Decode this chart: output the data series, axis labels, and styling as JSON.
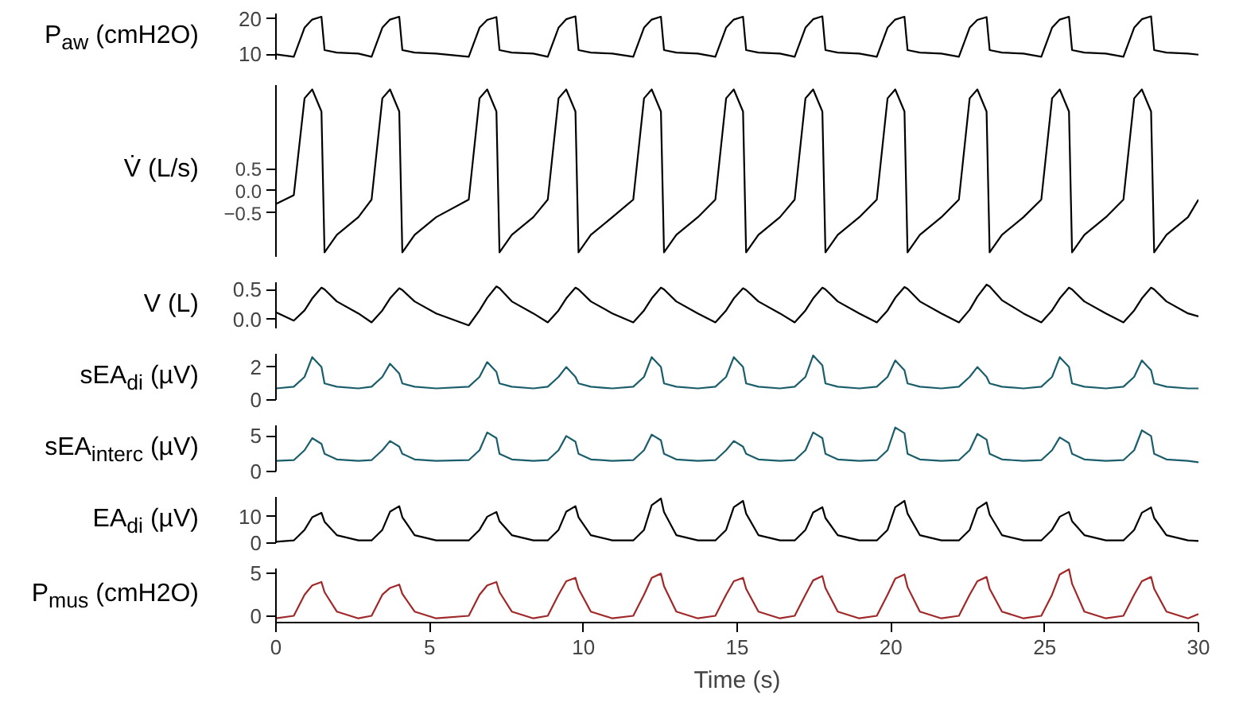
{
  "chart_data": [
    {
      "type": "line",
      "ylabel": "P$_{aw}$ (cmH2O)",
      "xlim": [
        0,
        30
      ],
      "ylim": [
        8.5,
        21.5
      ],
      "yticks": [
        10,
        20
      ],
      "tick_labels": "y",
      "x": [
        0,
        0.58,
        0.93,
        1.18,
        1.48,
        1.58,
        1.98,
        2.68,
        3.11,
        3.46,
        3.71,
        4.01,
        4.11,
        4.51,
        5.21,
        6.27,
        6.62,
        6.87,
        7.17,
        7.27,
        7.67,
        8.37,
        8.84,
        9.19,
        9.44,
        9.74,
        9.84,
        10.24,
        10.94,
        11.62,
        11.97,
        12.22,
        12.52,
        12.62,
        13.02,
        13.72,
        14.29,
        14.64,
        14.89,
        15.19,
        15.29,
        15.69,
        16.39,
        16.87,
        17.22,
        17.47,
        17.77,
        17.87,
        18.27,
        18.97,
        19.54,
        19.89,
        20.14,
        20.44,
        20.54,
        20.94,
        21.64,
        22.21,
        22.56,
        22.81,
        23.11,
        23.21,
        23.61,
        24.31,
        24.89,
        25.24,
        25.49,
        25.79,
        25.89,
        26.29,
        26.99,
        27.56,
        27.91,
        28.16,
        28.46,
        28.56,
        28.96,
        29.66,
        30
      ],
      "series": [
        {
          "color": "#000000",
          "values": [
            10.0,
            9.3,
            17.5,
            19.8,
            20.6,
            11.2,
            10.5,
            10.2,
            9.3,
            17.5,
            19.8,
            20.6,
            11.2,
            10.5,
            10.2,
            9.3,
            17.5,
            19.7,
            20.5,
            11.2,
            10.5,
            10.2,
            9.3,
            17.5,
            19.9,
            20.7,
            11.2,
            10.5,
            10.2,
            9.3,
            17.5,
            19.8,
            20.6,
            11.2,
            10.5,
            10.2,
            9.3,
            17.5,
            19.8,
            20.6,
            11.2,
            10.5,
            10.2,
            9.3,
            17.5,
            19.9,
            20.7,
            11.2,
            10.5,
            10.2,
            9.3,
            17.5,
            19.8,
            20.6,
            11.2,
            10.5,
            10.2,
            9.3,
            17.5,
            19.7,
            20.5,
            11.2,
            10.5,
            10.2,
            9.3,
            17.5,
            19.8,
            20.6,
            11.2,
            10.5,
            10.2,
            9.3,
            17.5,
            19.9,
            20.7,
            11.2,
            10.5,
            10.2,
            9.9
          ]
        }
      ]
    },
    {
      "type": "line",
      "ylabel": "V̇ (L/s)",
      "xlim": [
        0,
        30
      ],
      "ylim": [
        -1.5,
        2.4
      ],
      "yticks": [
        {
          "value": -0.5,
          "label": "−0.5"
        },
        {
          "value": 0,
          "label": "0.0"
        },
        {
          "value": 0.5,
          "label": "0.5"
        }
      ],
      "tick_labels": "y",
      "x": [
        0,
        0.58,
        0.93,
        1.18,
        1.48,
        1.58,
        1.98,
        2.68,
        3.11,
        3.46,
        3.71,
        4.01,
        4.11,
        4.51,
        5.21,
        6.27,
        6.62,
        6.87,
        7.17,
        7.27,
        7.67,
        8.37,
        8.84,
        9.19,
        9.44,
        9.74,
        9.84,
        10.24,
        10.94,
        11.62,
        11.97,
        12.22,
        12.52,
        12.62,
        13.02,
        13.72,
        14.29,
        14.64,
        14.89,
        15.19,
        15.29,
        15.69,
        16.39,
        16.87,
        17.22,
        17.47,
        17.77,
        17.87,
        18.27,
        18.97,
        19.54,
        19.89,
        20.14,
        20.44,
        20.54,
        20.94,
        21.64,
        22.21,
        22.56,
        22.81,
        23.11,
        23.21,
        23.61,
        24.31,
        24.89,
        25.24,
        25.49,
        25.79,
        25.89,
        26.29,
        26.99,
        27.56,
        27.91,
        28.16,
        28.46,
        28.56,
        28.96,
        29.66,
        30
      ],
      "series": [
        {
          "color": "#000000",
          "values": [
            -0.3,
            -0.1,
            2.1,
            2.3,
            1.8,
            -1.4,
            -1.0,
            -0.6,
            -0.2,
            2.1,
            2.3,
            1.8,
            -1.4,
            -1.0,
            -0.6,
            -0.2,
            2.1,
            2.3,
            1.8,
            -1.4,
            -1.0,
            -0.6,
            -0.2,
            2.1,
            2.3,
            1.8,
            -1.4,
            -1.0,
            -0.6,
            -0.2,
            2.1,
            2.3,
            1.8,
            -1.4,
            -1.0,
            -0.6,
            -0.2,
            2.1,
            2.3,
            1.8,
            -1.4,
            -1.0,
            -0.6,
            -0.2,
            2.1,
            2.3,
            1.8,
            -1.4,
            -1.0,
            -0.6,
            -0.2,
            2.1,
            2.3,
            1.8,
            -1.4,
            -1.0,
            -0.6,
            -0.2,
            2.1,
            2.3,
            1.8,
            -1.4,
            -1.0,
            -0.6,
            -0.2,
            2.1,
            2.3,
            1.8,
            -1.4,
            -1.0,
            -0.6,
            -0.2,
            2.1,
            2.3,
            1.8,
            -1.4,
            -1.0,
            -0.6,
            -0.2
          ]
        }
      ]
    },
    {
      "type": "line",
      "ylabel": "V (L)",
      "xlim": [
        0,
        30
      ],
      "ylim": [
        -0.15,
        0.62
      ],
      "yticks": [
        {
          "value": 0,
          "label": "0.0"
        },
        {
          "value": 0.5,
          "label": "0.5"
        }
      ],
      "tick_labels": "y",
      "x": [
        0,
        0.58,
        0.93,
        1.18,
        1.48,
        1.58,
        1.98,
        2.68,
        3.11,
        3.46,
        3.71,
        4.01,
        4.11,
        4.51,
        5.21,
        6.27,
        6.62,
        6.87,
        7.17,
        7.27,
        7.67,
        8.37,
        8.84,
        9.19,
        9.44,
        9.74,
        9.84,
        10.24,
        10.94,
        11.62,
        11.97,
        12.22,
        12.52,
        12.62,
        13.02,
        13.72,
        14.29,
        14.64,
        14.89,
        15.19,
        15.29,
        15.69,
        16.39,
        16.87,
        17.22,
        17.47,
        17.77,
        17.87,
        18.27,
        18.97,
        19.54,
        19.89,
        20.14,
        20.44,
        20.54,
        20.94,
        21.64,
        22.21,
        22.56,
        22.81,
        23.11,
        23.21,
        23.61,
        24.31,
        24.89,
        25.24,
        25.49,
        25.79,
        25.89,
        26.29,
        26.99,
        27.56,
        27.91,
        28.16,
        28.46,
        28.56,
        28.96,
        29.66,
        30
      ],
      "series": [
        {
          "color": "#000000",
          "values": [
            0.12,
            -0.02,
            0.15,
            0.35,
            0.53,
            0.5,
            0.3,
            0.1,
            -0.05,
            0.15,
            0.35,
            0.52,
            0.49,
            0.3,
            0.1,
            -0.1,
            0.15,
            0.36,
            0.55,
            0.52,
            0.3,
            0.1,
            -0.05,
            0.15,
            0.35,
            0.53,
            0.5,
            0.3,
            0.1,
            -0.05,
            0.15,
            0.35,
            0.53,
            0.5,
            0.3,
            0.1,
            -0.05,
            0.15,
            0.35,
            0.52,
            0.49,
            0.3,
            0.1,
            -0.05,
            0.15,
            0.35,
            0.53,
            0.5,
            0.3,
            0.1,
            -0.05,
            0.15,
            0.36,
            0.54,
            0.51,
            0.3,
            0.1,
            -0.05,
            0.16,
            0.38,
            0.58,
            0.55,
            0.32,
            0.1,
            -0.05,
            0.15,
            0.35,
            0.53,
            0.5,
            0.3,
            0.1,
            -0.05,
            0.15,
            0.35,
            0.53,
            0.5,
            0.3,
            0.1,
            0.05
          ]
        }
      ]
    },
    {
      "type": "line",
      "ylabel": "sEA$_{di}$ (µV)",
      "xlim": [
        0,
        30
      ],
      "ylim": [
        0,
        2.8
      ],
      "yticks": [
        0,
        2
      ],
      "tick_labels": "y",
      "x": [
        0,
        0.58,
        0.93,
        1.18,
        1.48,
        1.58,
        1.98,
        2.68,
        3.11,
        3.46,
        3.71,
        4.01,
        4.11,
        4.51,
        5.21,
        6.27,
        6.62,
        6.87,
        7.17,
        7.27,
        7.67,
        8.37,
        8.84,
        9.19,
        9.44,
        9.74,
        9.84,
        10.24,
        10.94,
        11.62,
        11.97,
        12.22,
        12.52,
        12.62,
        13.02,
        13.72,
        14.29,
        14.64,
        14.89,
        15.19,
        15.29,
        15.69,
        16.39,
        16.87,
        17.22,
        17.47,
        17.77,
        17.87,
        18.27,
        18.97,
        19.54,
        19.89,
        20.14,
        20.44,
        20.54,
        20.94,
        21.64,
        22.21,
        22.56,
        22.81,
        23.11,
        23.21,
        23.61,
        24.31,
        24.89,
        25.24,
        25.49,
        25.79,
        25.89,
        26.29,
        26.99,
        27.56,
        27.91,
        28.16,
        28.46,
        28.56,
        28.96,
        29.66,
        30
      ],
      "series": [
        {
          "color": "#1b5e6b",
          "values": [
            0.7,
            0.8,
            1.4,
            2.6,
            2.0,
            1.0,
            0.8,
            0.7,
            0.8,
            1.4,
            2.2,
            1.6,
            1.0,
            0.8,
            0.7,
            0.8,
            1.4,
            2.3,
            1.7,
            1.0,
            0.8,
            0.7,
            0.8,
            1.4,
            2.0,
            1.4,
            1.0,
            0.8,
            0.7,
            0.8,
            1.4,
            2.6,
            2.0,
            1.0,
            0.8,
            0.7,
            0.8,
            1.4,
            2.6,
            2.0,
            1.0,
            0.8,
            0.7,
            0.8,
            1.4,
            2.7,
            2.1,
            1.0,
            0.8,
            0.7,
            0.8,
            1.4,
            2.4,
            1.8,
            1.0,
            0.8,
            0.7,
            0.8,
            1.4,
            2.0,
            1.4,
            1.0,
            0.8,
            0.7,
            0.8,
            1.4,
            2.6,
            2.0,
            1.0,
            0.8,
            0.7,
            0.8,
            1.4,
            2.4,
            1.8,
            1.0,
            0.8,
            0.7,
            0.7
          ]
        }
      ]
    },
    {
      "type": "line",
      "ylabel": "sEA$_{interc}$ (µV)",
      "xlim": [
        0,
        30
      ],
      "ylim": [
        0,
        6.5
      ],
      "yticks": [
        0,
        5
      ],
      "tick_labels": "y",
      "x": [
        0,
        0.58,
        0.93,
        1.18,
        1.48,
        1.58,
        1.98,
        2.68,
        3.11,
        3.46,
        3.71,
        4.01,
        4.11,
        4.51,
        5.21,
        6.27,
        6.62,
        6.87,
        7.17,
        7.27,
        7.67,
        8.37,
        8.84,
        9.19,
        9.44,
        9.74,
        9.84,
        10.24,
        10.94,
        11.62,
        11.97,
        12.22,
        12.52,
        12.62,
        13.02,
        13.72,
        14.29,
        14.64,
        14.89,
        15.19,
        15.29,
        15.69,
        16.39,
        16.87,
        17.22,
        17.47,
        17.77,
        17.87,
        18.27,
        18.97,
        19.54,
        19.89,
        20.14,
        20.44,
        20.54,
        20.94,
        21.64,
        22.21,
        22.56,
        22.81,
        23.11,
        23.21,
        23.61,
        24.31,
        24.89,
        25.24,
        25.49,
        25.79,
        25.89,
        26.29,
        26.99,
        27.56,
        27.91,
        28.16,
        28.46,
        28.56,
        28.96,
        29.66,
        30
      ],
      "series": [
        {
          "color": "#1b5e6b",
          "values": [
            1.5,
            1.6,
            3.0,
            4.7,
            3.9,
            2.5,
            1.7,
            1.5,
            1.6,
            3.0,
            4.3,
            3.5,
            2.5,
            1.7,
            1.5,
            1.6,
            3.0,
            5.5,
            4.7,
            2.5,
            1.7,
            1.5,
            1.6,
            3.0,
            5.0,
            4.2,
            2.5,
            1.7,
            1.5,
            1.6,
            3.0,
            5.2,
            4.4,
            2.5,
            1.7,
            1.5,
            1.6,
            3.0,
            4.3,
            3.5,
            2.5,
            1.7,
            1.5,
            1.6,
            3.0,
            5.5,
            4.7,
            2.5,
            1.7,
            1.5,
            1.6,
            3.0,
            6.2,
            5.4,
            2.5,
            1.7,
            1.5,
            1.6,
            3.0,
            5.3,
            4.5,
            2.5,
            1.7,
            1.5,
            1.6,
            3.0,
            4.8,
            4.0,
            2.5,
            1.7,
            1.5,
            1.6,
            3.0,
            5.8,
            5.0,
            2.5,
            1.7,
            1.5,
            1.3
          ]
        }
      ]
    },
    {
      "type": "line",
      "ylabel": "EA$_{di}$ (µV)",
      "xlim": [
        0,
        30
      ],
      "ylim": [
        0,
        17.5
      ],
      "yticks": [
        0,
        10
      ],
      "tick_labels": "y",
      "x": [
        0,
        0.58,
        0.93,
        1.18,
        1.48,
        1.58,
        1.98,
        2.68,
        3.11,
        3.46,
        3.71,
        4.01,
        4.11,
        4.51,
        5.21,
        6.27,
        6.62,
        6.87,
        7.17,
        7.27,
        7.67,
        8.37,
        8.84,
        9.19,
        9.44,
        9.74,
        9.84,
        10.24,
        10.94,
        11.62,
        11.97,
        12.22,
        12.52,
        12.62,
        13.02,
        13.72,
        14.29,
        14.64,
        14.89,
        15.19,
        15.29,
        15.69,
        16.39,
        16.87,
        17.22,
        17.47,
        17.77,
        17.87,
        18.27,
        18.97,
        19.54,
        19.89,
        20.14,
        20.44,
        20.54,
        20.94,
        21.64,
        22.21,
        22.56,
        22.81,
        23.11,
        23.21,
        23.61,
        24.31,
        24.89,
        25.24,
        25.49,
        25.79,
        25.89,
        26.29,
        26.99,
        27.56,
        27.91,
        28.16,
        28.46,
        28.56,
        28.96,
        29.66,
        30
      ],
      "series": [
        {
          "color": "#000000",
          "values": [
            0.5,
            1,
            5,
            9.8,
            11.5,
            8.1,
            3,
            1,
            1,
            5,
            11.9,
            14,
            9.8,
            3,
            1,
            1,
            5,
            10.0,
            11.8,
            8.3,
            3,
            1,
            1,
            5,
            11.9,
            14,
            9.8,
            3,
            1,
            1,
            5,
            14.4,
            16.9,
            11.8,
            3,
            1,
            1,
            5,
            13.6,
            16,
            11.2,
            3,
            1,
            1,
            5,
            11.6,
            13.6,
            9.5,
            3,
            1,
            1,
            5,
            13.6,
            16,
            11.2,
            3,
            1,
            1,
            5,
            13.1,
            15.4,
            10.8,
            3,
            1,
            1,
            5,
            10.0,
            11.8,
            8.3,
            3,
            1,
            1,
            5,
            11.5,
            13.5,
            9.5,
            3,
            1,
            0.8
          ]
        }
      ]
    },
    {
      "type": "line",
      "ylabel": "P$_{mus}$ (cmH2O)",
      "xlabel": "Time (s)",
      "xlim": [
        0,
        30
      ],
      "xticks": [
        0,
        5,
        10,
        15,
        20,
        25,
        30
      ],
      "ylim": [
        -0.8,
        5.6
      ],
      "yticks": [
        0,
        5
      ],
      "x": [
        0,
        0.58,
        0.93,
        1.18,
        1.48,
        1.58,
        1.98,
        2.68,
        3.11,
        3.46,
        3.71,
        4.01,
        4.11,
        4.51,
        5.21,
        6.27,
        6.62,
        6.87,
        7.17,
        7.27,
        7.67,
        8.37,
        8.84,
        9.19,
        9.44,
        9.74,
        9.84,
        10.24,
        10.94,
        11.62,
        11.97,
        12.22,
        12.52,
        12.62,
        13.02,
        13.72,
        14.29,
        14.64,
        14.89,
        15.19,
        15.29,
        15.69,
        16.39,
        16.87,
        17.22,
        17.47,
        17.77,
        17.87,
        18.27,
        18.97,
        19.54,
        19.89,
        20.14,
        20.44,
        20.54,
        20.94,
        21.64,
        22.21,
        22.56,
        22.81,
        23.11,
        23.21,
        23.61,
        24.31,
        24.89,
        25.24,
        25.49,
        25.79,
        25.89,
        26.29,
        26.99,
        27.56,
        27.91,
        28.16,
        28.46,
        28.56,
        28.96,
        29.66,
        30
      ],
      "series": [
        {
          "color": "#a02828",
          "values": [
            -0.3,
            0,
            2.5,
            3.6,
            4.0,
            2.8,
            0.5,
            -0.3,
            0,
            2.5,
            3.3,
            3.7,
            2.6,
            0.5,
            -0.3,
            0,
            2.5,
            3.6,
            4.0,
            2.8,
            0.5,
            -0.3,
            0,
            2.5,
            4.1,
            4.5,
            3.2,
            0.5,
            -0.3,
            0,
            2.5,
            4.5,
            5.0,
            3.5,
            0.5,
            -0.3,
            0,
            2.5,
            4.1,
            4.5,
            3.2,
            0.5,
            -0.3,
            0,
            2.5,
            4.2,
            4.7,
            3.3,
            0.5,
            -0.3,
            0,
            2.5,
            4.4,
            4.9,
            3.4,
            0.5,
            -0.3,
            0,
            2.5,
            4.1,
            4.6,
            3.2,
            0.5,
            -0.3,
            0,
            2.5,
            4.9,
            5.5,
            3.8,
            0.5,
            -0.3,
            0,
            2.5,
            4.1,
            4.6,
            3.2,
            0.5,
            -0.3,
            0.2
          ]
        }
      ]
    }
  ]
}
